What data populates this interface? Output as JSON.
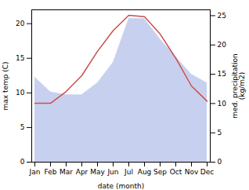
{
  "chart_data": {
    "type": "line",
    "xlabel": "date (month)",
    "ylabel": "max temp (C)",
    "y2label": "med. precipitation\n(kg/m2)",
    "categories": [
      "Jan",
      "Feb",
      "Mar",
      "Apr",
      "May",
      "Jun",
      "Jul",
      "Aug",
      "Sep",
      "Oct",
      "Nov",
      "Dec"
    ],
    "series": [
      {
        "type": "area",
        "axis": "y2",
        "color": "#c8d0f0",
        "values": [
          14.5,
          12.0,
          11.5,
          11.5,
          13.5,
          17.0,
          24.5,
          24.5,
          21.0,
          18.0,
          15.0,
          13.5
        ]
      },
      {
        "type": "line",
        "color": "#c8504a",
        "values": [
          8.5,
          8.5,
          10.2,
          12.5,
          16.0,
          19.0,
          21.2,
          21.0,
          18.5,
          15.0,
          11.0,
          8.8
        ]
      }
    ],
    "ylim": [
      0,
      22
    ],
    "yticks": [
      0,
      5,
      10,
      15,
      20
    ],
    "y2lim": [
      0,
      26
    ],
    "y2ticks": [
      0,
      5,
      10,
      15,
      20,
      25
    ],
    "grid": false
  }
}
